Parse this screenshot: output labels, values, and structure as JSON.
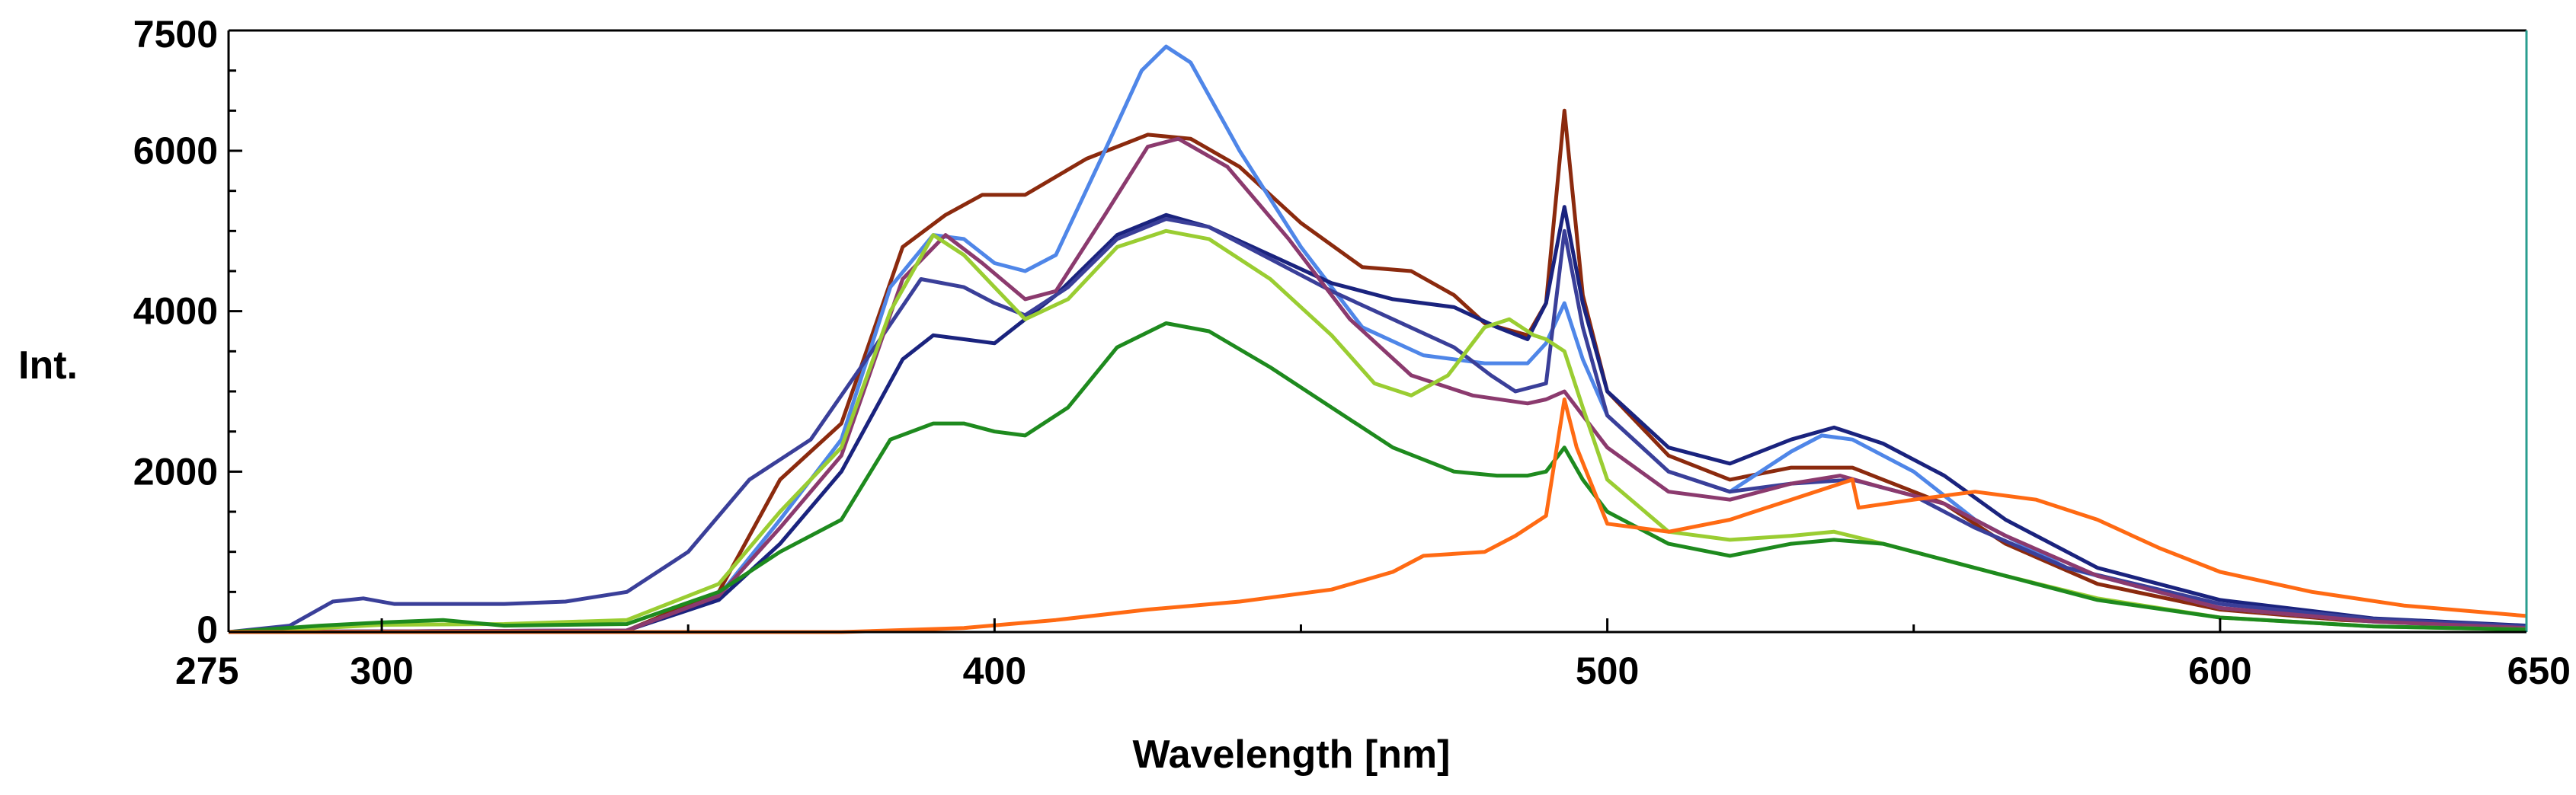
{
  "chart_data": {
    "type": "line",
    "title": "",
    "xlabel": "Wavelength [nm]",
    "ylabel": "Int.",
    "xlim": [
      275,
      650
    ],
    "ylim": [
      0,
      7500
    ],
    "x_ticks": [
      275,
      300,
      400,
      500,
      600,
      650
    ],
    "y_ticks": [
      0,
      2000,
      4000,
      6000,
      7500
    ],
    "grid": false,
    "legend": "none",
    "series": [
      {
        "name": "brown",
        "color": "#8b2a0e",
        "points": [
          [
            275,
            0
          ],
          [
            340,
            20
          ],
          [
            355,
            500
          ],
          [
            365,
            1900
          ],
          [
            375,
            2600
          ],
          [
            385,
            4800
          ],
          [
            392,
            5200
          ],
          [
            398,
            5450
          ],
          [
            405,
            5450
          ],
          [
            415,
            5900
          ],
          [
            425,
            6200
          ],
          [
            432,
            6150
          ],
          [
            440,
            5800
          ],
          [
            450,
            5100
          ],
          [
            460,
            4550
          ],
          [
            468,
            4500
          ],
          [
            475,
            4200
          ],
          [
            480,
            3850
          ],
          [
            487,
            3700
          ],
          [
            490,
            4100
          ],
          [
            493,
            6500
          ],
          [
            496,
            4200
          ],
          [
            500,
            3000
          ],
          [
            510,
            2200
          ],
          [
            520,
            1900
          ],
          [
            530,
            2050
          ],
          [
            540,
            2050
          ],
          [
            545,
            1900
          ],
          [
            555,
            1600
          ],
          [
            565,
            1100
          ],
          [
            580,
            600
          ],
          [
            600,
            280
          ],
          [
            620,
            150
          ],
          [
            650,
            60
          ]
        ]
      },
      {
        "name": "light blue",
        "color": "#4f86e8",
        "points": [
          [
            275,
            0
          ],
          [
            340,
            20
          ],
          [
            355,
            450
          ],
          [
            365,
            1400
          ],
          [
            375,
            2400
          ],
          [
            383,
            4300
          ],
          [
            390,
            4950
          ],
          [
            395,
            4900
          ],
          [
            400,
            4600
          ],
          [
            405,
            4500
          ],
          [
            410,
            4700
          ],
          [
            418,
            6000
          ],
          [
            424,
            7000
          ],
          [
            428,
            7300
          ],
          [
            432,
            7100
          ],
          [
            440,
            6000
          ],
          [
            450,
            4800
          ],
          [
            460,
            3800
          ],
          [
            470,
            3450
          ],
          [
            480,
            3350
          ],
          [
            487,
            3350
          ],
          [
            490,
            3600
          ],
          [
            493,
            4100
          ],
          [
            496,
            3400
          ],
          [
            500,
            2700
          ],
          [
            510,
            2000
          ],
          [
            520,
            1750
          ],
          [
            530,
            2250
          ],
          [
            535,
            2450
          ],
          [
            540,
            2400
          ],
          [
            550,
            2000
          ],
          [
            560,
            1400
          ],
          [
            575,
            800
          ],
          [
            600,
            300
          ],
          [
            625,
            130
          ],
          [
            650,
            50
          ]
        ]
      },
      {
        "name": "navy",
        "color": "#1a237e",
        "points": [
          [
            275,
            0
          ],
          [
            340,
            20
          ],
          [
            355,
            400
          ],
          [
            365,
            1100
          ],
          [
            375,
            2000
          ],
          [
            385,
            3400
          ],
          [
            390,
            3700
          ],
          [
            395,
            3650
          ],
          [
            400,
            3600
          ],
          [
            410,
            4200
          ],
          [
            420,
            4950
          ],
          [
            428,
            5200
          ],
          [
            435,
            5050
          ],
          [
            445,
            4700
          ],
          [
            455,
            4350
          ],
          [
            465,
            4150
          ],
          [
            475,
            4050
          ],
          [
            482,
            3800
          ],
          [
            487,
            3650
          ],
          [
            490,
            4100
          ],
          [
            493,
            5300
          ],
          [
            496,
            4100
          ],
          [
            500,
            3000
          ],
          [
            510,
            2300
          ],
          [
            520,
            2100
          ],
          [
            530,
            2400
          ],
          [
            537,
            2550
          ],
          [
            545,
            2350
          ],
          [
            555,
            1950
          ],
          [
            565,
            1400
          ],
          [
            580,
            800
          ],
          [
            600,
            400
          ],
          [
            625,
            170
          ],
          [
            650,
            80
          ]
        ]
      },
      {
        "name": "slate blue",
        "color": "#3a3f99",
        "points": [
          [
            275,
            0
          ],
          [
            285,
            80
          ],
          [
            292,
            380
          ],
          [
            297,
            420
          ],
          [
            302,
            350
          ],
          [
            320,
            350
          ],
          [
            330,
            380
          ],
          [
            340,
            500
          ],
          [
            350,
            1000
          ],
          [
            360,
            1900
          ],
          [
            370,
            2400
          ],
          [
            380,
            3500
          ],
          [
            388,
            4400
          ],
          [
            395,
            4300
          ],
          [
            400,
            4100
          ],
          [
            405,
            3950
          ],
          [
            412,
            4300
          ],
          [
            420,
            4900
          ],
          [
            428,
            5150
          ],
          [
            435,
            5050
          ],
          [
            445,
            4650
          ],
          [
            455,
            4250
          ],
          [
            465,
            3900
          ],
          [
            475,
            3550
          ],
          [
            481,
            3200
          ],
          [
            485,
            3000
          ],
          [
            490,
            3100
          ],
          [
            493,
            5000
          ],
          [
            496,
            3800
          ],
          [
            500,
            2700
          ],
          [
            510,
            2000
          ],
          [
            520,
            1750
          ],
          [
            530,
            1850
          ],
          [
            540,
            1900
          ],
          [
            550,
            1700
          ],
          [
            560,
            1300
          ],
          [
            575,
            800
          ],
          [
            600,
            350
          ],
          [
            625,
            160
          ],
          [
            650,
            70
          ]
        ]
      },
      {
        "name": "plum",
        "color": "#8b3a6e",
        "points": [
          [
            275,
            0
          ],
          [
            340,
            20
          ],
          [
            355,
            450
          ],
          [
            365,
            1300
          ],
          [
            375,
            2200
          ],
          [
            385,
            4400
          ],
          [
            392,
            4950
          ],
          [
            398,
            4600
          ],
          [
            405,
            4150
          ],
          [
            410,
            4250
          ],
          [
            418,
            5200
          ],
          [
            425,
            6050
          ],
          [
            430,
            6150
          ],
          [
            438,
            5800
          ],
          [
            448,
            4900
          ],
          [
            458,
            3900
          ],
          [
            468,
            3200
          ],
          [
            478,
            2950
          ],
          [
            487,
            2850
          ],
          [
            490,
            2900
          ],
          [
            493,
            3000
          ],
          [
            496,
            2700
          ],
          [
            500,
            2300
          ],
          [
            510,
            1750
          ],
          [
            520,
            1650
          ],
          [
            530,
            1850
          ],
          [
            538,
            1950
          ],
          [
            545,
            1800
          ],
          [
            555,
            1600
          ],
          [
            565,
            1200
          ],
          [
            580,
            700
          ],
          [
            600,
            300
          ],
          [
            625,
            130
          ],
          [
            650,
            50
          ]
        ]
      },
      {
        "name": "yellow-green",
        "color": "#9acd32",
        "points": [
          [
            275,
            0
          ],
          [
            290,
            50
          ],
          [
            300,
            90
          ],
          [
            320,
            100
          ],
          [
            340,
            150
          ],
          [
            355,
            600
          ],
          [
            365,
            1500
          ],
          [
            375,
            2300
          ],
          [
            383,
            4000
          ],
          [
            390,
            4950
          ],
          [
            395,
            4700
          ],
          [
            400,
            4300
          ],
          [
            405,
            3900
          ],
          [
            412,
            4150
          ],
          [
            420,
            4800
          ],
          [
            428,
            5000
          ],
          [
            435,
            4900
          ],
          [
            445,
            4400
          ],
          [
            455,
            3700
          ],
          [
            462,
            3100
          ],
          [
            468,
            2950
          ],
          [
            474,
            3200
          ],
          [
            480,
            3800
          ],
          [
            484,
            3900
          ],
          [
            488,
            3700
          ],
          [
            490,
            3650
          ],
          [
            493,
            3500
          ],
          [
            496,
            2800
          ],
          [
            500,
            1900
          ],
          [
            510,
            1250
          ],
          [
            520,
            1150
          ],
          [
            530,
            1200
          ],
          [
            537,
            1250
          ],
          [
            545,
            1100
          ],
          [
            555,
            900
          ],
          [
            565,
            700
          ],
          [
            580,
            420
          ],
          [
            600,
            180
          ],
          [
            625,
            70
          ],
          [
            650,
            30
          ]
        ]
      },
      {
        "name": "green",
        "color": "#1e8a1e",
        "points": [
          [
            275,
            0
          ],
          [
            290,
            80
          ],
          [
            300,
            120
          ],
          [
            310,
            150
          ],
          [
            320,
            80
          ],
          [
            340,
            100
          ],
          [
            355,
            500
          ],
          [
            365,
            1000
          ],
          [
            375,
            1400
          ],
          [
            383,
            2400
          ],
          [
            390,
            2600
          ],
          [
            395,
            2600
          ],
          [
            400,
            2500
          ],
          [
            405,
            2450
          ],
          [
            412,
            2800
          ],
          [
            420,
            3550
          ],
          [
            428,
            3850
          ],
          [
            435,
            3750
          ],
          [
            445,
            3300
          ],
          [
            455,
            2800
          ],
          [
            465,
            2300
          ],
          [
            475,
            2000
          ],
          [
            482,
            1950
          ],
          [
            487,
            1950
          ],
          [
            490,
            2000
          ],
          [
            493,
            2300
          ],
          [
            496,
            1900
          ],
          [
            500,
            1500
          ],
          [
            510,
            1100
          ],
          [
            520,
            950
          ],
          [
            530,
            1100
          ],
          [
            537,
            1150
          ],
          [
            545,
            1100
          ],
          [
            555,
            900
          ],
          [
            565,
            700
          ],
          [
            580,
            400
          ],
          [
            600,
            180
          ],
          [
            625,
            70
          ],
          [
            650,
            30
          ]
        ]
      },
      {
        "name": "orange",
        "color": "#ff6a13",
        "points": [
          [
            275,
            0
          ],
          [
            375,
            0
          ],
          [
            395,
            50
          ],
          [
            410,
            150
          ],
          [
            425,
            280
          ],
          [
            440,
            380
          ],
          [
            455,
            530
          ],
          [
            465,
            750
          ],
          [
            470,
            950
          ],
          [
            480,
            1000
          ],
          [
            485,
            1200
          ],
          [
            490,
            1450
          ],
          [
            493,
            2900
          ],
          [
            495,
            2300
          ],
          [
            500,
            1350
          ],
          [
            510,
            1250
          ],
          [
            520,
            1400
          ],
          [
            530,
            1650
          ],
          [
            540,
            1900
          ],
          [
            541,
            1550
          ],
          [
            550,
            1650
          ],
          [
            560,
            1750
          ],
          [
            570,
            1650
          ],
          [
            580,
            1400
          ],
          [
            590,
            1050
          ],
          [
            600,
            750
          ],
          [
            615,
            500
          ],
          [
            630,
            330
          ],
          [
            650,
            200
          ]
        ]
      }
    ]
  }
}
